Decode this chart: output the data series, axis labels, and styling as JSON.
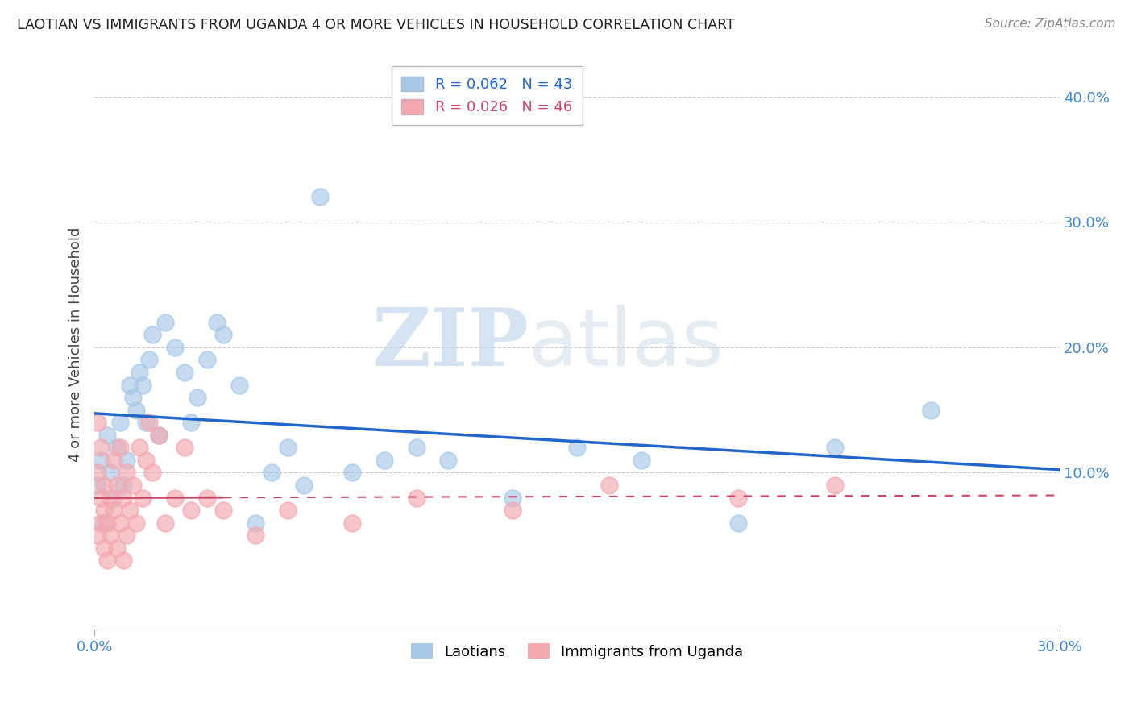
{
  "title": "LAOTIAN VS IMMIGRANTS FROM UGANDA 4 OR MORE VEHICLES IN HOUSEHOLD CORRELATION CHART",
  "source": "Source: ZipAtlas.com",
  "ylabel": "4 or more Vehicles in Household",
  "xlim": [
    0.0,
    0.3
  ],
  "ylim": [
    -0.025,
    0.43
  ],
  "blue_R": 0.062,
  "blue_N": 43,
  "pink_R": 0.026,
  "pink_N": 46,
  "blue_color": "#a8c8e8",
  "pink_color": "#f4a8b0",
  "blue_line_color": "#2266cc",
  "pink_line_color": "#cc4466",
  "legend_label_blue": "Laotians",
  "legend_label_pink": "Immigrants from Uganda",
  "watermark_zip": "ZIP",
  "watermark_atlas": "atlas",
  "yticks": [
    0.1,
    0.2,
    0.3,
    0.4
  ],
  "ytick_labels": [
    "10.0%",
    "20.0%",
    "30.0%",
    "40.0%"
  ],
  "blue_x": [
    0.001,
    0.002,
    0.003,
    0.004,
    0.005,
    0.006,
    0.007,
    0.008,
    0.009,
    0.01,
    0.011,
    0.012,
    0.013,
    0.014,
    0.015,
    0.016,
    0.017,
    0.018,
    0.02,
    0.022,
    0.025,
    0.028,
    0.03,
    0.032,
    0.035,
    0.038,
    0.04,
    0.045,
    0.05,
    0.055,
    0.06,
    0.065,
    0.07,
    0.08,
    0.09,
    0.1,
    0.11,
    0.13,
    0.15,
    0.17,
    0.2,
    0.23,
    0.26
  ],
  "blue_y": [
    0.09,
    0.11,
    0.06,
    0.13,
    0.1,
    0.08,
    0.12,
    0.14,
    0.09,
    0.11,
    0.17,
    0.16,
    0.15,
    0.18,
    0.17,
    0.14,
    0.19,
    0.21,
    0.13,
    0.22,
    0.2,
    0.18,
    0.14,
    0.16,
    0.19,
    0.22,
    0.21,
    0.17,
    0.06,
    0.1,
    0.12,
    0.09,
    0.32,
    0.1,
    0.11,
    0.12,
    0.11,
    0.08,
    0.12,
    0.11,
    0.06,
    0.12,
    0.15
  ],
  "pink_x": [
    0.001,
    0.001,
    0.001,
    0.002,
    0.002,
    0.002,
    0.003,
    0.003,
    0.003,
    0.004,
    0.004,
    0.005,
    0.005,
    0.006,
    0.006,
    0.007,
    0.007,
    0.008,
    0.008,
    0.009,
    0.009,
    0.01,
    0.01,
    0.011,
    0.012,
    0.013,
    0.014,
    0.015,
    0.016,
    0.017,
    0.018,
    0.02,
    0.022,
    0.025,
    0.028,
    0.03,
    0.035,
    0.04,
    0.05,
    0.06,
    0.08,
    0.1,
    0.13,
    0.16,
    0.2,
    0.23
  ],
  "pink_y": [
    0.14,
    0.1,
    0.05,
    0.08,
    0.06,
    0.12,
    0.07,
    0.04,
    0.09,
    0.06,
    0.03,
    0.08,
    0.05,
    0.11,
    0.07,
    0.09,
    0.04,
    0.12,
    0.06,
    0.08,
    0.03,
    0.1,
    0.05,
    0.07,
    0.09,
    0.06,
    0.12,
    0.08,
    0.11,
    0.14,
    0.1,
    0.13,
    0.06,
    0.08,
    0.12,
    0.07,
    0.08,
    0.07,
    0.05,
    0.07,
    0.06,
    0.08,
    0.07,
    0.09,
    0.08,
    0.09
  ]
}
